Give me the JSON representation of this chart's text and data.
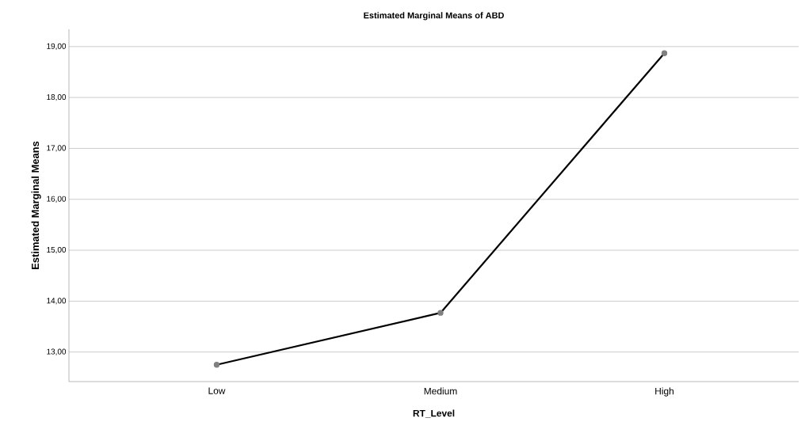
{
  "chart_data": {
    "type": "line",
    "title": "Estimated Marginal Means of ABD",
    "xlabel": "RT_Level",
    "ylabel": "Estimated Marginal Means",
    "categories": [
      "Low",
      "Medium",
      "High"
    ],
    "series": [
      {
        "color": "#000000",
        "values": [
          12.75,
          13.77,
          18.87
        ]
      }
    ],
    "ylim": [
      12.42,
      19.34
    ],
    "yticks": [
      {
        "value": 13,
        "label": "13,00"
      },
      {
        "value": 14,
        "label": "14,00"
      },
      {
        "value": 15,
        "label": "15,00"
      },
      {
        "value": 16,
        "label": "16,00"
      },
      {
        "value": 17,
        "label": "17,00"
      },
      {
        "value": 18,
        "label": "18,00"
      },
      {
        "value": 19,
        "label": "19,00"
      }
    ],
    "grid": "y",
    "marker": "circle",
    "line_style": "solid"
  }
}
